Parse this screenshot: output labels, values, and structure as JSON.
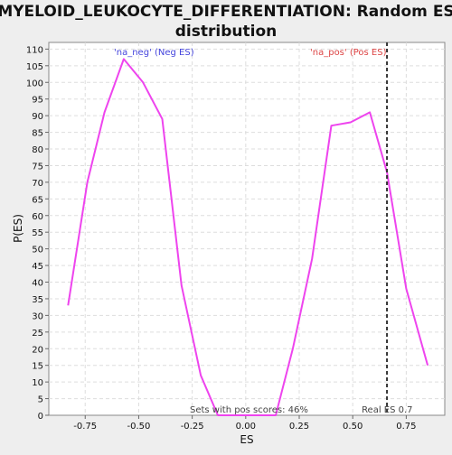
{
  "chart_data": {
    "type": "line",
    "title_line1": "MYELOID_LEUKOCYTE_DIFFERENTIATION: Random ES",
    "title_line2": "distribution",
    "xlabel": "ES",
    "ylabel": "P(ES)",
    "xlim": [
      -0.92,
      0.93
    ],
    "ylim": [
      0,
      112
    ],
    "x_ticks": [
      -0.75,
      -0.5,
      -0.25,
      0.0,
      0.25,
      0.5,
      0.75
    ],
    "x_tick_labels": [
      "-0.75",
      "-0.50",
      "-0.25",
      "0.00",
      "0.25",
      "0.50",
      "0.75"
    ],
    "y_ticks": [
      0,
      5,
      10,
      15,
      20,
      25,
      30,
      35,
      40,
      45,
      50,
      55,
      60,
      65,
      70,
      75,
      80,
      85,
      90,
      95,
      100,
      105,
      110
    ],
    "grid": true,
    "series": [
      {
        "color": "#ee44ee",
        "x": [
          -0.83,
          -0.74,
          -0.66,
          -0.57,
          -0.48,
          -0.39,
          -0.3,
          -0.21,
          -0.13,
          -0.04,
          0.05,
          0.14,
          0.22,
          0.31,
          0.4,
          0.49,
          0.58,
          0.66,
          0.75,
          0.85
        ],
        "y": [
          33,
          70,
          91,
          107,
          100,
          89,
          39,
          12,
          0,
          0,
          0,
          0,
          20,
          47,
          87,
          88,
          91,
          73,
          38,
          15
        ]
      }
    ],
    "vline": {
      "x": 0.66,
      "label": "Real ES 0.7"
    },
    "annotations": {
      "neg": "'na_neg' (Neg ES)",
      "pos": "'na_pos' (Pos ES)",
      "sets": "Sets with pos scores: 46%"
    },
    "colors": {
      "neg": "#4444dd",
      "pos": "#dd4444",
      "line": "#ee44ee",
      "background": "#eeeeee",
      "plot_background": "#ffffff"
    }
  }
}
